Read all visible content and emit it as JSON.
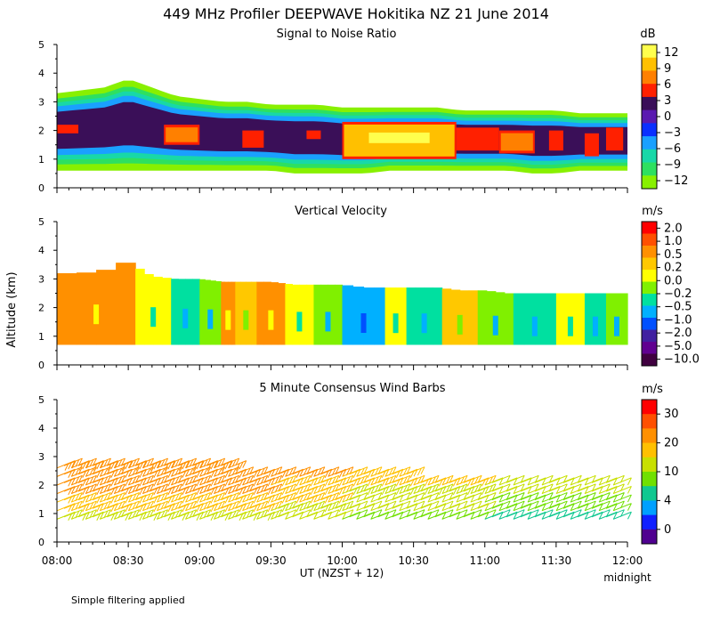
{
  "figure": {
    "title": "449 MHz Profiler DEEPWAVE Hokitika NZ 21 June 2014",
    "ylabel": "Altitude (km)",
    "xlabel": "UT  (NZST + 12)",
    "x_end_note": "midnight",
    "footnote": "Simple filtering applied",
    "x_ticks": [
      "08:00",
      "08:30",
      "09:00",
      "09:30",
      "10:00",
      "10:30",
      "11:00",
      "11:30",
      "12:00"
    ]
  },
  "chart_data": [
    {
      "type": "heatmap",
      "title": "Signal to Noise Ratio",
      "xlabel": "UT  (NZST + 12)",
      "ylabel": "Altitude (km)",
      "xlim": [
        8.0,
        12.0
      ],
      "ylim": [
        0,
        5
      ],
      "y_ticks": [
        "0",
        "1",
        "2",
        "3",
        "4",
        "5"
      ],
      "colorbar": {
        "unit": "dB",
        "labels": [
          "12",
          "9",
          "6",
          "3",
          "0",
          "−3",
          "−6",
          "−9",
          "−12"
        ],
        "colors": [
          "#ffff4d",
          "#ffc000",
          "#ff8000",
          "#ff2000",
          "#3a0f58",
          "#5a1ab0",
          "#0a30ff",
          "#1aa0ff",
          "#18d8a8",
          "#2ee060",
          "#88f000"
        ]
      },
      "cover_bottom_km": [
        0.6,
        0.6,
        0.6,
        0.6,
        0.6,
        0.6,
        0.6,
        0.6,
        0.6,
        0.6,
        0.5,
        0.5,
        0.5,
        0.5,
        0.6,
        0.6,
        0.6,
        0.6,
        0.6,
        0.6,
        0.5,
        0.5,
        0.6,
        0.6,
        0.6
      ],
      "cover_top_km": [
        3.3,
        3.4,
        3.5,
        3.8,
        3.5,
        3.2,
        3.1,
        3.0,
        3.0,
        2.9,
        2.9,
        2.9,
        2.8,
        2.8,
        2.8,
        2.8,
        2.8,
        2.7,
        2.7,
        2.7,
        2.7,
        2.7,
        2.6,
        2.6,
        2.6
      ],
      "strong_echo_layers_km": [
        {
          "x0": 8.0,
          "x1": 8.15,
          "y0": 1.9,
          "y1": 2.2,
          "db": 6
        },
        {
          "x0": 8.75,
          "x1": 9.0,
          "y0": 1.5,
          "y1": 2.2,
          "db": 9
        },
        {
          "x0": 9.3,
          "x1": 9.45,
          "y0": 1.4,
          "y1": 2.0,
          "db": 6
        },
        {
          "x0": 9.75,
          "x1": 9.85,
          "y0": 1.7,
          "y1": 2.0,
          "db": 6
        },
        {
          "x0": 10.0,
          "x1": 10.8,
          "y0": 1.0,
          "y1": 2.3,
          "db": 12
        },
        {
          "x0": 10.8,
          "x1": 11.1,
          "y0": 1.3,
          "y1": 2.1,
          "db": 6
        },
        {
          "x0": 11.1,
          "x1": 11.35,
          "y0": 1.2,
          "y1": 2.0,
          "db": 9
        },
        {
          "x0": 11.45,
          "x1": 11.55,
          "y0": 1.3,
          "y1": 2.0,
          "db": 6
        },
        {
          "x0": 11.7,
          "x1": 11.8,
          "y0": 1.1,
          "y1": 1.9,
          "db": 6
        },
        {
          "x0": 11.85,
          "x1": 11.97,
          "y0": 1.3,
          "y1": 2.1,
          "db": 6
        }
      ]
    },
    {
      "type": "heatmap",
      "title": "Vertical Velocity",
      "xlabel": "UT  (NZST + 12)",
      "ylabel": "Altitude (km)",
      "xlim": [
        8.0,
        12.0
      ],
      "ylim": [
        0,
        5
      ],
      "y_ticks": [
        "0",
        "1",
        "2",
        "3",
        "4",
        "5"
      ],
      "colorbar": {
        "unit": "m/s",
        "labels": [
          "2.0",
          "1.0",
          "0.5",
          "0.2",
          "0.0",
          "−0.2",
          "−0.5",
          "−1.0",
          "−2.0",
          "−5.0",
          "−10.0"
        ],
        "colors": [
          "#ff0000",
          "#ff5000",
          "#ff9000",
          "#ffc800",
          "#ffff00",
          "#80f000",
          "#00e0a0",
          "#00b0ff",
          "#0050ff",
          "#4020a0",
          "#600090",
          "#400040"
        ]
      },
      "bottom_km": 0.7,
      "top_km": [
        3.2,
        3.2,
        3.3,
        3.6,
        3.1,
        3.0,
        3.0,
        2.9,
        2.9,
        2.9,
        2.8,
        2.8,
        2.8,
        2.7,
        2.7,
        2.7,
        2.7,
        2.6,
        2.6,
        2.5,
        2.5,
        2.5,
        2.5,
        2.5,
        2.5
      ],
      "segments_w_m_s": [
        {
          "x0": 8.0,
          "x1": 8.55,
          "w": 0.5
        },
        {
          "x0": 8.55,
          "x1": 8.8,
          "w": 0.0
        },
        {
          "x0": 8.8,
          "x1": 9.0,
          "w": -0.5
        },
        {
          "x0": 9.0,
          "x1": 9.15,
          "w": -0.2
        },
        {
          "x0": 9.15,
          "x1": 9.25,
          "w": 0.5
        },
        {
          "x0": 9.25,
          "x1": 9.4,
          "w": 0.2
        },
        {
          "x0": 9.4,
          "x1": 9.6,
          "w": 0.5
        },
        {
          "x0": 9.6,
          "x1": 9.8,
          "w": 0.0
        },
        {
          "x0": 9.8,
          "x1": 10.0,
          "w": -0.2
        },
        {
          "x0": 10.0,
          "x1": 10.3,
          "w": -1.0
        },
        {
          "x0": 10.3,
          "x1": 10.45,
          "w": 0.0
        },
        {
          "x0": 10.45,
          "x1": 10.7,
          "w": -0.5
        },
        {
          "x0": 10.7,
          "x1": 10.95,
          "w": 0.2
        },
        {
          "x0": 10.95,
          "x1": 11.2,
          "w": -0.2
        },
        {
          "x0": 11.2,
          "x1": 11.5,
          "w": -0.5
        },
        {
          "x0": 11.5,
          "x1": 11.7,
          "w": 0.0
        },
        {
          "x0": 11.7,
          "x1": 11.85,
          "w": -0.5
        },
        {
          "x0": 11.85,
          "x1": 12.0,
          "w": -0.2
        }
      ]
    },
    {
      "type": "scatter",
      "title": "5 Minute Consensus Wind Barbs",
      "xlabel": "UT  (NZST + 12)",
      "ylabel": "Altitude (km)",
      "xlim": [
        8.0,
        12.0
      ],
      "ylim": [
        0,
        5
      ],
      "y_ticks": [
        "0",
        "1",
        "2",
        "3",
        "4",
        "5"
      ],
      "colorbar": {
        "unit": "m/s",
        "labels": [
          "30",
          "20",
          "10",
          "4",
          "0"
        ],
        "colors": [
          "#ff0000",
          "#ff5000",
          "#ff9000",
          "#ffc000",
          "#c8e000",
          "#70e000",
          "#10c890",
          "#00a0ff",
          "#1020ff",
          "#500090"
        ]
      },
      "barb_levels_km": [
        0.8,
        1.1,
        1.4,
        1.7,
        2.0,
        2.3,
        2.6
      ],
      "wind_speed_m_s": [
        {
          "x0": 8.0,
          "x1": 9.5,
          "speeds": [
            16,
            18,
            20,
            22,
            24,
            24,
            26
          ]
        },
        {
          "x0": 9.5,
          "x1": 10.0,
          "speeds": [
            14,
            16,
            18,
            20,
            21,
            22,
            22
          ]
        },
        {
          "x0": 10.0,
          "x1": 11.0,
          "speeds": [
            10,
            12,
            14,
            16,
            18,
            18,
            18
          ]
        },
        {
          "x0": 11.0,
          "x1": 12.0,
          "speeds": [
            6,
            8,
            10,
            12,
            14,
            15,
            15
          ]
        }
      ],
      "barb_top_km": [
        2.8,
        2.8,
        2.8,
        2.7,
        2.6,
        2.6,
        2.4,
        2.4,
        2.3,
        2.3,
        2.3,
        2.2,
        2.2,
        2.2,
        2.2,
        2.2,
        2.2
      ]
    }
  ]
}
